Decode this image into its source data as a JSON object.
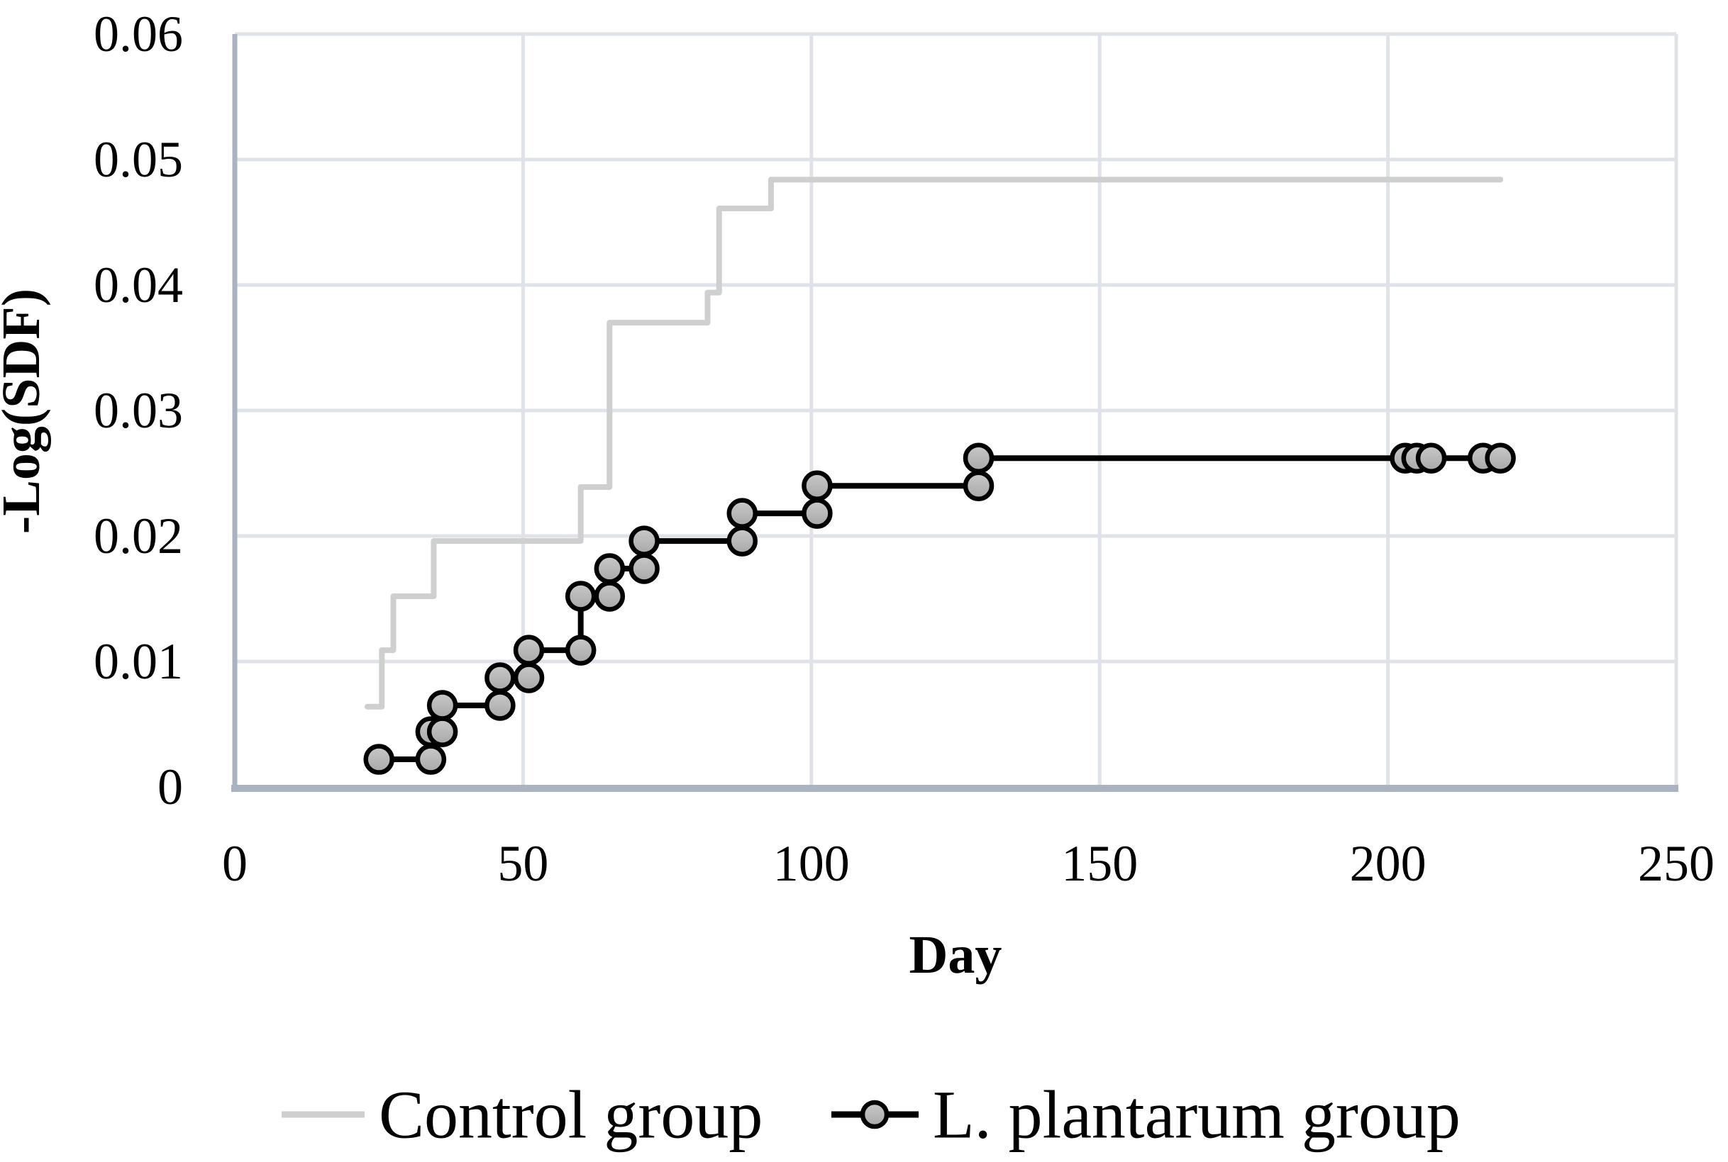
{
  "chart_data": {
    "type": "line",
    "subtype": "step-survival-curve",
    "title": "",
    "xlabel": "Day",
    "ylabel": "-Log(SDF)",
    "xlim": [
      0,
      250
    ],
    "ylim": [
      0,
      0.06
    ],
    "x_ticks": [
      0,
      50,
      100,
      150,
      200,
      250
    ],
    "x_tick_labels": [
      "0",
      "50",
      "100",
      "150",
      "200",
      "250"
    ],
    "y_ticks": [
      0,
      0.01,
      0.02,
      0.03,
      0.04,
      0.05,
      0.06
    ],
    "y_tick_labels": [
      "0",
      "0.01",
      "0.02",
      "0.03",
      "0.04",
      "0.05",
      "0.06"
    ],
    "grid": true,
    "legend_position": "bottom",
    "series": [
      {
        "name": "Control group",
        "color": "#cfcfcf",
        "marker": "none",
        "line_width": 8,
        "points": [
          [
            23,
            0.0064
          ],
          [
            25.5,
            0.0064
          ],
          [
            25.5,
            0.0109
          ],
          [
            27.5,
            0.0109
          ],
          [
            27.5,
            0.0152
          ],
          [
            34.5,
            0.0152
          ],
          [
            34.5,
            0.0196
          ],
          [
            60,
            0.0196
          ],
          [
            60,
            0.0239
          ],
          [
            65,
            0.0239
          ],
          [
            65,
            0.037
          ],
          [
            82,
            0.037
          ],
          [
            82,
            0.0394
          ],
          [
            84,
            0.0394
          ],
          [
            84,
            0.0461
          ],
          [
            93,
            0.0461
          ],
          [
            93,
            0.0484
          ],
          [
            219.5,
            0.0484
          ]
        ]
      },
      {
        "name": "L. plantarum group",
        "color": "#000000",
        "marker": "circle",
        "line_width": 8,
        "points": [
          [
            25,
            0.0022
          ],
          [
            34,
            0.0022
          ],
          [
            34,
            0.0044
          ],
          [
            36,
            0.0044
          ],
          [
            36,
            0.0065
          ],
          [
            46,
            0.0065
          ],
          [
            46,
            0.0087
          ],
          [
            51,
            0.0087
          ],
          [
            51,
            0.0109
          ],
          [
            60,
            0.0109
          ],
          [
            60,
            0.0152
          ],
          [
            65,
            0.0152
          ],
          [
            65,
            0.0174
          ],
          [
            71,
            0.0174
          ],
          [
            71,
            0.0196
          ],
          [
            88,
            0.0196
          ],
          [
            88,
            0.0218
          ],
          [
            101,
            0.0218
          ],
          [
            101,
            0.024
          ],
          [
            129,
            0.024
          ],
          [
            129,
            0.0262
          ],
          [
            220,
            0.0262
          ]
        ],
        "marker_points": [
          [
            25,
            0.0022
          ],
          [
            34,
            0.0022
          ],
          [
            34,
            0.0044
          ],
          [
            36,
            0.0044
          ],
          [
            36,
            0.0065
          ],
          [
            46,
            0.0065
          ],
          [
            46,
            0.0087
          ],
          [
            51,
            0.0087
          ],
          [
            51,
            0.0109
          ],
          [
            60,
            0.0109
          ],
          [
            60,
            0.0152
          ],
          [
            65,
            0.0152
          ],
          [
            65,
            0.0174
          ],
          [
            71,
            0.0174
          ],
          [
            71,
            0.0196
          ],
          [
            88,
            0.0196
          ],
          [
            88,
            0.0218
          ],
          [
            101,
            0.0218
          ],
          [
            101,
            0.024
          ],
          [
            129,
            0.024
          ],
          [
            129,
            0.0262
          ],
          [
            203,
            0.0262
          ],
          [
            205,
            0.0262
          ],
          [
            207.5,
            0.0262
          ],
          [
            216.5,
            0.0262
          ],
          [
            219.5,
            0.0262
          ]
        ]
      }
    ]
  },
  "colors": {
    "background": "#ffffff",
    "gridline": "#dfe3e9",
    "axis_line": "#a9b3c2",
    "control_line": "#cfcfcf",
    "plantarum_line": "#000000",
    "marker_fill_top": "#c9c9c9",
    "marker_fill_bottom": "#a8a8a8",
    "text": "#000000"
  }
}
